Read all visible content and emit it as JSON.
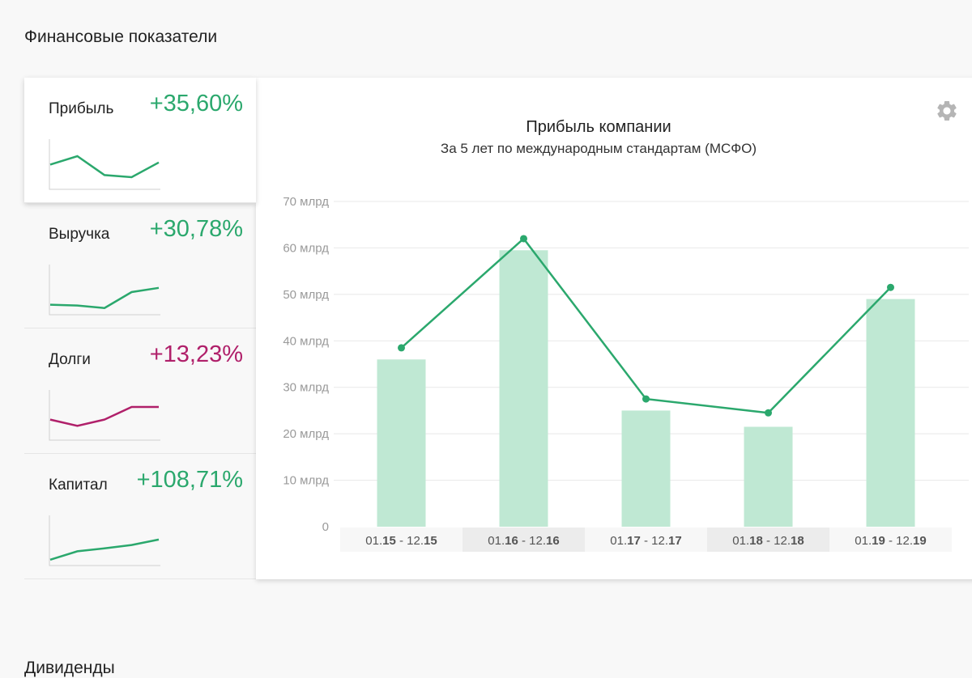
{
  "section_title": "Финансовые показатели",
  "next_section_title": "Дивиденды",
  "colors": {
    "positive": "#2ba86d",
    "negative": "#b0206a",
    "bar": "#bfe8d3",
    "grid": "#e8e8e8",
    "xband": "#ececec",
    "xband_light": "#f7f7f7"
  },
  "metrics": [
    {
      "label": "Прибыль",
      "change": "+35,60%",
      "trend": "positive",
      "spark": [
        0.55,
        0.75,
        0.3,
        0.25,
        0.6
      ]
    },
    {
      "label": "Выручка",
      "change": "+30,78%",
      "trend": "positive",
      "spark": [
        0.2,
        0.18,
        0.12,
        0.5,
        0.6
      ]
    },
    {
      "label": "Долги",
      "change": "+13,23%",
      "trend": "negative",
      "spark": [
        0.45,
        0.3,
        0.45,
        0.75,
        0.75
      ]
    },
    {
      "label": "Капитал",
      "change": "+108,71%",
      "trend": "positive",
      "spark": [
        0.1,
        0.3,
        0.37,
        0.45,
        0.58
      ]
    }
  ],
  "settings_icon": "gear-icon",
  "chart_data": {
    "type": "bar",
    "title": "Прибыль компании",
    "subtitle": "За 5 лет по международным стандартам (МСФО)",
    "categories": [
      {
        "pre1": "01.",
        "y1": "15",
        "mid": " - 12.",
        "y2": "15"
      },
      {
        "pre1": "01.",
        "y1": "16",
        "mid": " - 12.",
        "y2": "16"
      },
      {
        "pre1": "01.",
        "y1": "17",
        "mid": " - 12.",
        "y2": "17"
      },
      {
        "pre1": "01.",
        "y1": "18",
        "mid": " - 12.",
        "y2": "18"
      },
      {
        "pre1": "01.",
        "y1": "19",
        "mid": " - 12.",
        "y2": "19"
      }
    ],
    "bars": [
      36,
      59.5,
      25,
      21.5,
      49
    ],
    "line": [
      38.5,
      62,
      27.5,
      24.5,
      51.5
    ],
    "ylim": [
      0,
      70
    ],
    "yticks": [
      {
        "value": 0,
        "label": "0"
      },
      {
        "value": 10,
        "label": "10 млрд"
      },
      {
        "value": 20,
        "label": "20 млрд"
      },
      {
        "value": 30,
        "label": "30 млрд"
      },
      {
        "value": 40,
        "label": "40 млрд"
      },
      {
        "value": 50,
        "label": "50 млрд"
      },
      {
        "value": 60,
        "label": "60 млрд"
      },
      {
        "value": 70,
        "label": "70 млрд"
      }
    ],
    "grid": true,
    "highlighted_categories": [
      1,
      3
    ]
  }
}
